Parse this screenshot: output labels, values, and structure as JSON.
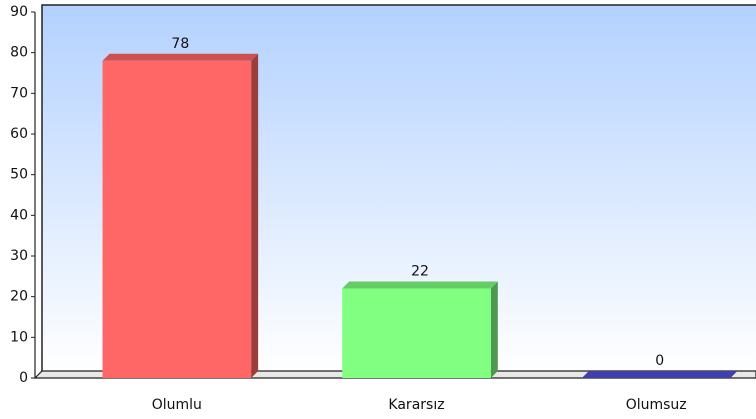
{
  "chart_data": {
    "type": "bar",
    "categories": [
      "Olumlu",
      "Kararsız",
      "Olumsuz"
    ],
    "values": [
      78,
      22,
      0
    ],
    "colors": [
      "#ff6666",
      "#80ff80",
      "#5050d8"
    ],
    "ylim": [
      0,
      90
    ],
    "yticks": [
      0,
      10,
      20,
      30,
      40,
      50,
      60,
      70,
      80,
      90
    ]
  }
}
